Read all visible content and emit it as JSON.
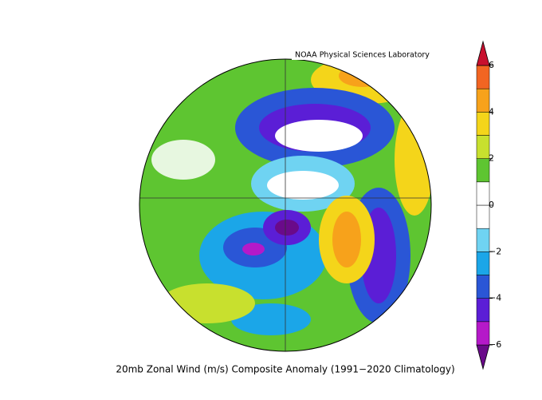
{
  "map": {
    "credit": "NOAA Physical Sciences Laboratory",
    "caption": "20mb Zonal Wind (m/s) Composite Anomaly (1991−2020 Climatology)"
  },
  "colorbar": {
    "lim": [
      -6,
      6
    ],
    "ticks": [
      {
        "value": -6,
        "label": "−6"
      },
      {
        "value": -4,
        "label": "−4"
      },
      {
        "value": -2,
        "label": "−2"
      },
      0,
      2,
      4,
      6
    ],
    "colors": [
      "#6a0a8a",
      "#b519c9",
      "#5b1ed6",
      "#2a56d6",
      "#1ba6e8",
      "#6fd3f2",
      "#ffffff",
      "#ffffff",
      "#5ec531",
      "#c8e02e",
      "#f4d51a",
      "#f7a21b",
      "#f26522",
      "#c8102e"
    ]
  }
}
